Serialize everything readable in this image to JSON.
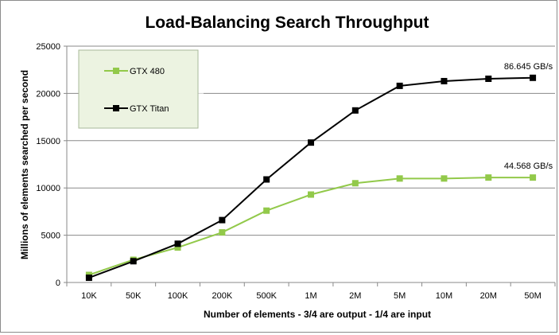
{
  "chart_data": {
    "type": "line",
    "title": "Load-Balancing Search Throughput",
    "xlabel": "Number of elements - 3/4 are output - 1/4 are input",
    "ylabel": "Millions of elements searched per second",
    "categories": [
      "10K",
      "50K",
      "100K",
      "200K",
      "500K",
      "1M",
      "2M",
      "5M",
      "10M",
      "20M",
      "50M"
    ],
    "ylim": [
      0,
      25000
    ],
    "yticks": [
      0,
      5000,
      10000,
      15000,
      20000,
      25000
    ],
    "grid": "horizontal",
    "legend_position": "top-left",
    "series": [
      {
        "name": "GTX 480",
        "color": "#92c94a",
        "values": [
          800,
          2400,
          3700,
          5300,
          7600,
          9300,
          10500,
          11000,
          11000,
          11100,
          11100
        ],
        "end_label": "44.568 GB/s"
      },
      {
        "name": "GTX Titan",
        "color": "#000000",
        "values": [
          500,
          2250,
          4100,
          6600,
          10900,
          14800,
          18200,
          20800,
          21300,
          21550,
          21650
        ],
        "end_label": "86.645 GB/s"
      }
    ]
  }
}
